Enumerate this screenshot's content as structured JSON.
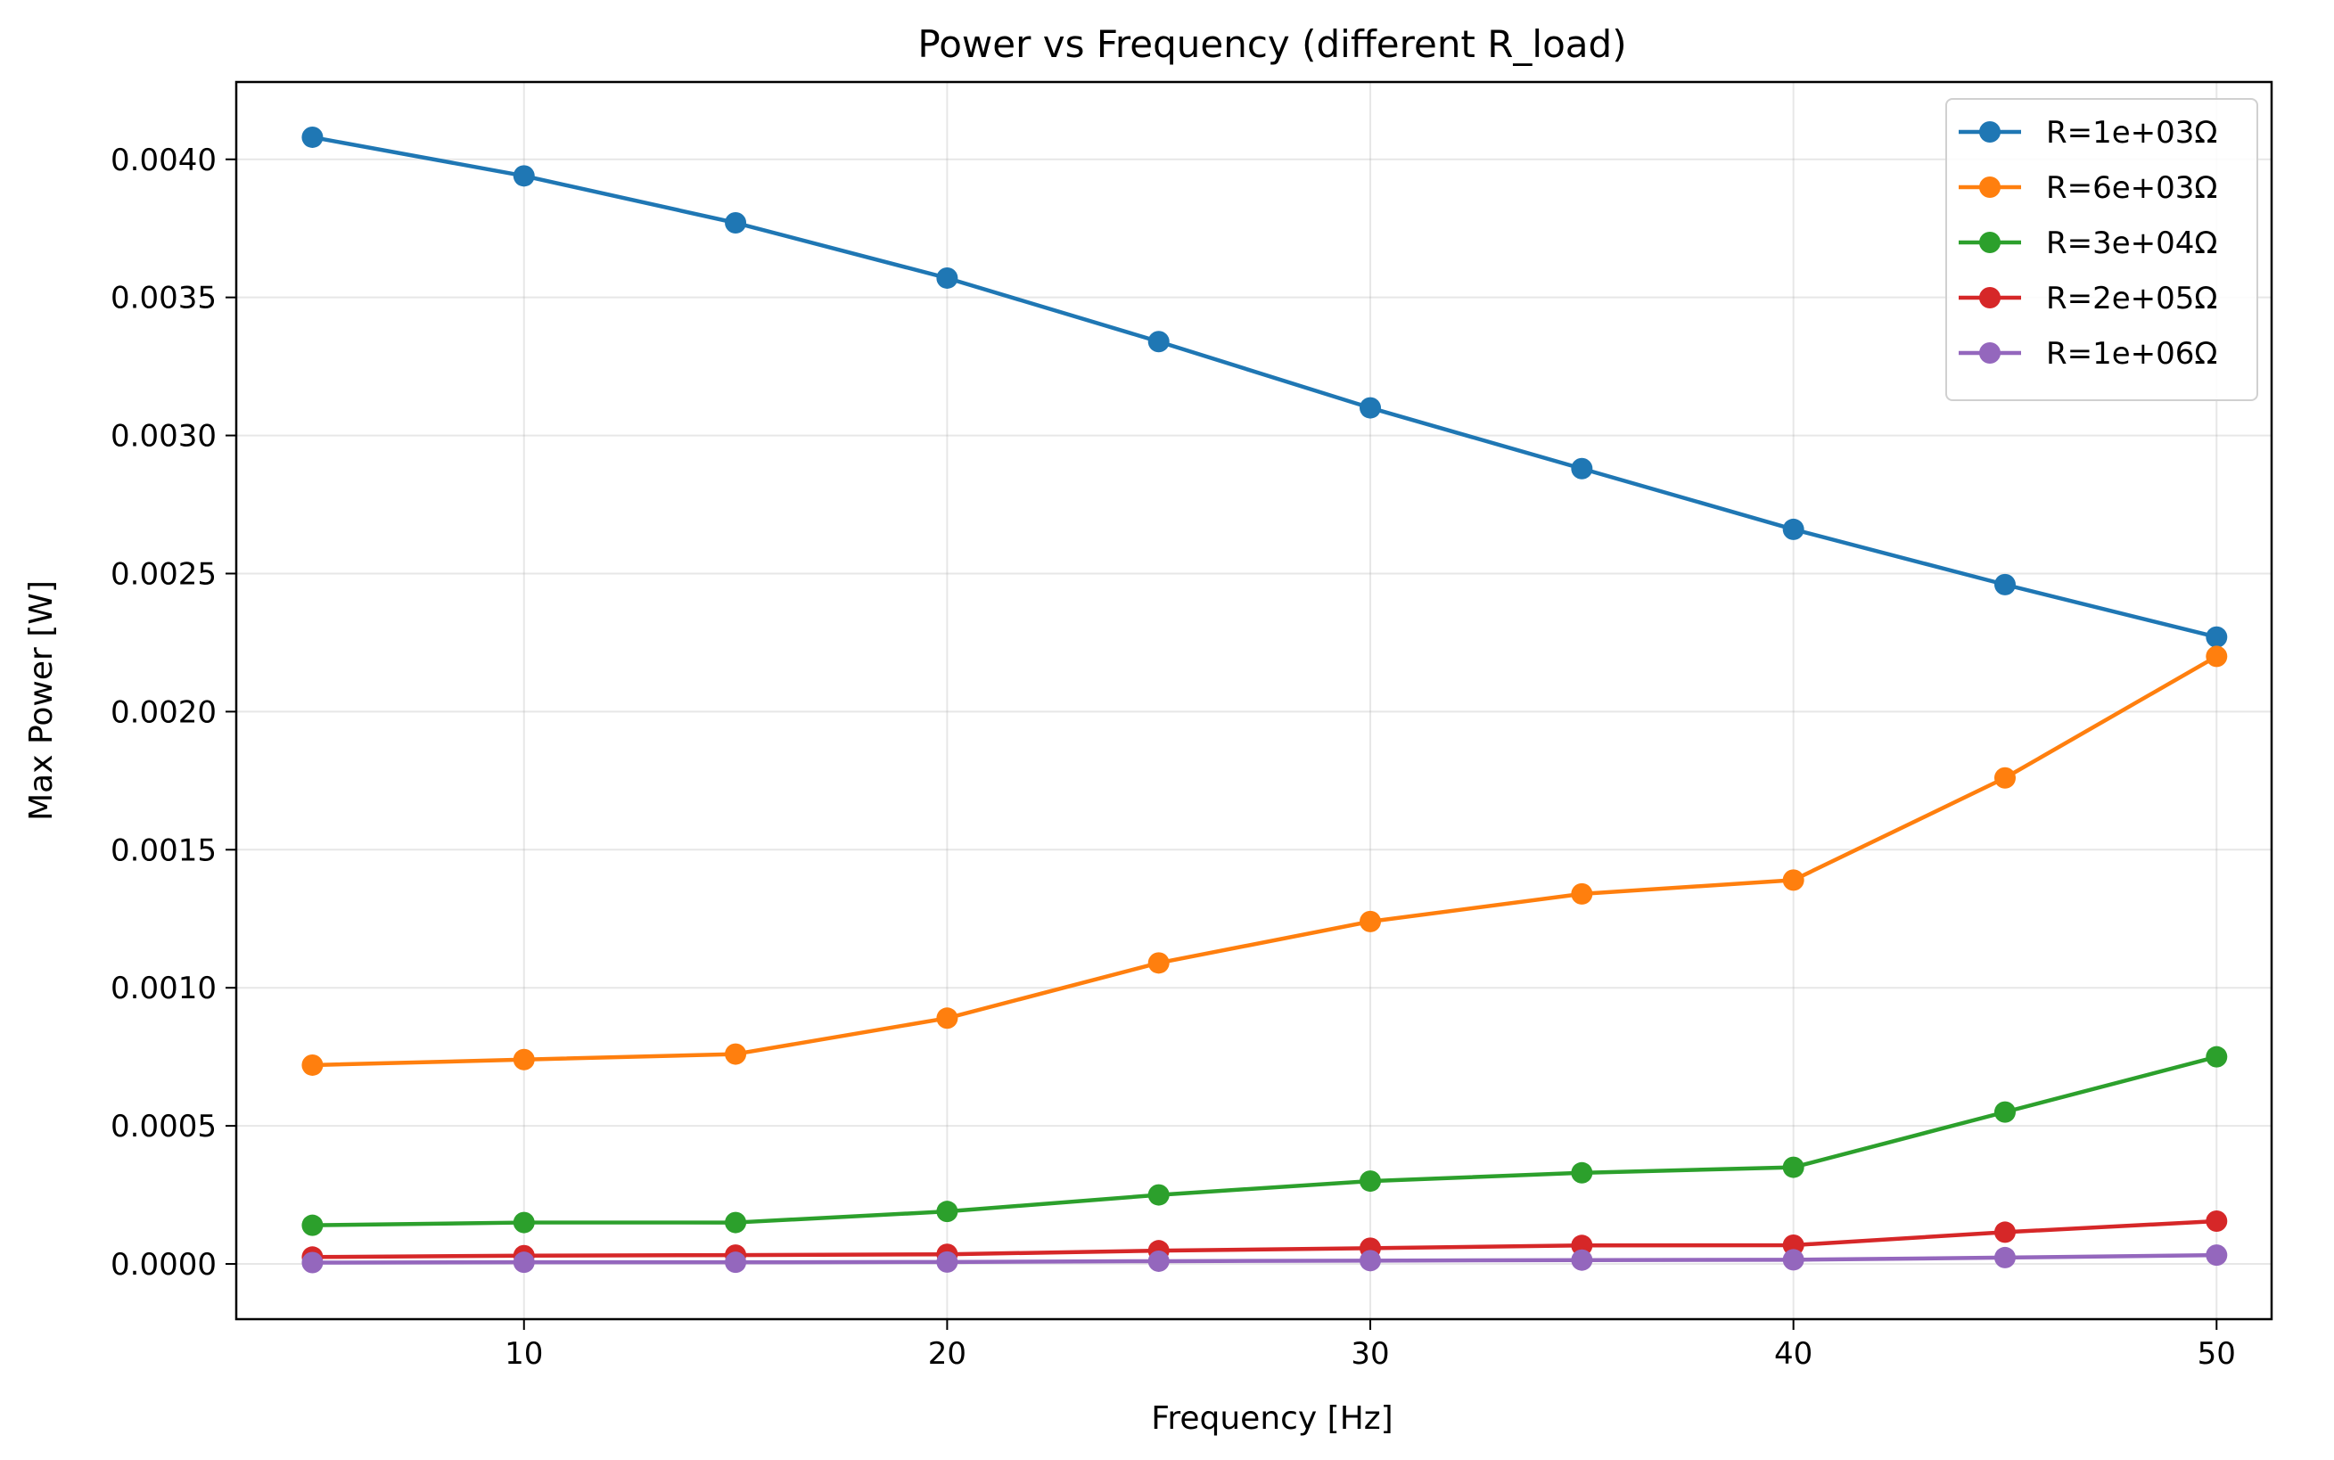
{
  "chart_data": {
    "type": "line",
    "title": "Power vs Frequency (different R_load)",
    "xlabel": "Frequency [Hz]",
    "ylabel": "Max Power [W]",
    "xlim": [
      3.2,
      51.3
    ],
    "ylim": [
      -0.0002,
      0.00428
    ],
    "xticks": [
      10,
      20,
      30,
      40,
      50
    ],
    "xtick_labels": [
      "10",
      "20",
      "30",
      "40",
      "50"
    ],
    "yticks": [
      0,
      0.0005,
      0.001,
      0.0015,
      0.002,
      0.0025,
      0.003,
      0.0035,
      0.004
    ],
    "ytick_labels": [
      "0.0000",
      "0.0005",
      "0.0010",
      "0.0015",
      "0.0020",
      "0.0025",
      "0.0030",
      "0.0035",
      "0.0040"
    ],
    "grid": true,
    "legend_position": "top-right",
    "x": [
      5,
      10,
      15,
      20,
      25,
      30,
      35,
      40,
      45,
      50
    ],
    "series": [
      {
        "name": "R=1e+03Ω",
        "color": "#1f77b4",
        "values": [
          0.00408,
          0.00394,
          0.00377,
          0.00357,
          0.00334,
          0.0031,
          0.00288,
          0.00266,
          0.00246,
          0.00227
        ]
      },
      {
        "name": "R=6e+03Ω",
        "color": "#ff7f0e",
        "values": [
          0.00072,
          0.00074,
          0.00076,
          0.00089,
          0.00109,
          0.00124,
          0.00134,
          0.00139,
          0.00176,
          0.0022
        ]
      },
      {
        "name": "R=3e+04Ω",
        "color": "#2ca02c",
        "values": [
          0.00014,
          0.00015,
          0.00015,
          0.00019,
          0.00025,
          0.0003,
          0.00033,
          0.00035,
          0.00055,
          0.00075
        ]
      },
      {
        "name": "R=2e+05Ω",
        "color": "#d62728",
        "values": [
          2.5e-05,
          3e-05,
          3.2e-05,
          3.5e-05,
          4.8e-05,
          5.7e-05,
          6.7e-05,
          6.8e-05,
          0.000115,
          0.000155
        ]
      },
      {
        "name": "R=1e+06Ω",
        "color": "#9467bd",
        "values": [
          5e-06,
          6e-06,
          6e-06,
          7e-06,
          1e-05,
          1.2e-05,
          1.4e-05,
          1.5e-05,
          2.3e-05,
          3.2e-05
        ]
      }
    ]
  }
}
